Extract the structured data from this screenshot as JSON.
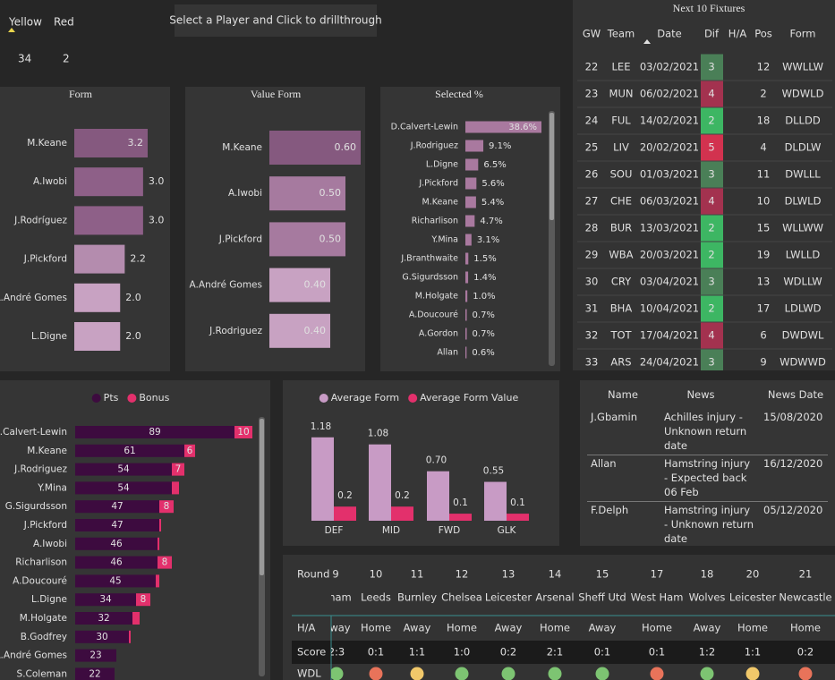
{
  "cards": [
    {
      "label": "Yellow",
      "value": 34,
      "color": "#e8d44d"
    },
    {
      "label": "Red",
      "value": 2,
      "color": "#b92a52"
    }
  ],
  "tooltip": "Select a Player and Click to drillthrough",
  "chart_data": [
    {
      "type": "hbar",
      "title": "Form",
      "categories": [
        "M.Keane",
        "A.Iwobi",
        "J.Rodríguez",
        "J.Pickford",
        "A.André Gomes",
        "L.Digne"
      ],
      "values": [
        3.2,
        3,
        3,
        2.2,
        2,
        2
      ],
      "value_labels": [
        "3.2",
        "3.0",
        "3.0",
        "2.2",
        "2.0",
        "2.0"
      ],
      "colors": [
        "#85597f",
        "#8e6088",
        "#8e6088",
        "#b48cae",
        "#c8a2c2",
        "#c8a2c2"
      ]
    },
    {
      "type": "hbar",
      "title": "Value Form",
      "categories": [
        "M.Keane",
        "A.Iwobi",
        "J.Pickford",
        "A.André Gomes",
        "J.Rodriguez"
      ],
      "values": [
        0.6,
        0.5,
        0.5,
        0.4,
        0.4
      ],
      "value_labels": [
        "0.60",
        "0.50",
        "0.50",
        "0.40",
        "0.40"
      ],
      "colors": [
        "#85597f",
        "#a67a9f",
        "#a67a9f",
        "#c8a2c2",
        "#c8a2c2"
      ]
    },
    {
      "type": "hbar",
      "title": "Selected %",
      "categories": [
        "D.Calvert-Lewin",
        "J.Rodriguez",
        "L.Digne",
        "J.Pickford",
        "M.Keane",
        "Richarlison",
        "Y.Mina",
        "J.Branthwaite",
        "G.Sigurdsson",
        "M.Holgate",
        "A.Doucouré",
        "A.Gordon",
        "Allan"
      ],
      "values": [
        38.6,
        9.1,
        6.5,
        5.6,
        5.4,
        4.7,
        3.1,
        1.5,
        1.4,
        1.0,
        0.7,
        0.7,
        0.6
      ],
      "value_labels": [
        "38.6%",
        "9.1%",
        "6.5%",
        "5.6%",
        "5.4%",
        "4.7%",
        "3.1%",
        "1.5%",
        "1.4%",
        "1.0%",
        "0.7%",
        "0.7%",
        "0.6%"
      ],
      "color": "#a9799f"
    },
    {
      "type": "hstack",
      "legend": "top",
      "categories": [
        "D.Calvert-Lewin",
        "M.Keane",
        "J.Rodriguez",
        "Y.Mina",
        "G.Sigurdsson",
        "J.Pickford",
        "A.Iwobi",
        "Richarlison",
        "A.Doucouré",
        "L.Digne",
        "M.Holgate",
        "B.Godfrey",
        "A.André Gomes",
        "S.Coleman"
      ],
      "series": [
        {
          "name": "Pts",
          "color": "#3d0b3f",
          "values": [
            89,
            61,
            54,
            54,
            47,
            47,
            46,
            46,
            45,
            34,
            32,
            30,
            23,
            22
          ]
        },
        {
          "name": "Bonus",
          "color": "#e3306c",
          "values": [
            10,
            6,
            7,
            4,
            8,
            1,
            1,
            8,
            2,
            8,
            4,
            1,
            null,
            null
          ]
        }
      ]
    },
    {
      "type": "column",
      "legend": "top",
      "categories": [
        "DEF",
        "MID",
        "FWD",
        "GLK"
      ],
      "series": [
        {
          "name": "Average Form",
          "color": "#c89bc5",
          "values": [
            1.18,
            1.08,
            0.7,
            0.55
          ],
          "value_labels": [
            "1.18",
            "1.08",
            "0.70",
            "0.55"
          ]
        },
        {
          "name": "Average Form Value",
          "color": "#e3306c",
          "values": [
            0.2,
            0.2,
            0.1,
            0.1
          ]
        }
      ]
    }
  ],
  "fixtures": {
    "title": "Next 10 Fixtures",
    "columns": [
      "GW",
      "Team",
      "Date",
      "Dif",
      "H/A",
      "Pos",
      "Form"
    ],
    "dif_colors": {
      "2": "#3db663",
      "3": "#4a7f57",
      "4": "#a3324f",
      "5": "#d2324f"
    },
    "rows": [
      {
        "gw": 22,
        "team": "LEE",
        "date": "03/02/2021",
        "dif": 3,
        "pos": 12,
        "form": "WWLLW"
      },
      {
        "gw": 23,
        "team": "MUN",
        "date": "06/02/2021",
        "dif": 4,
        "pos": 2,
        "form": "WDWLD"
      },
      {
        "gw": 24,
        "team": "FUL",
        "date": "14/02/2021",
        "dif": 2,
        "pos": 18,
        "form": "DLLDD"
      },
      {
        "gw": 25,
        "team": "LIV",
        "date": "20/02/2021",
        "dif": 5,
        "pos": 4,
        "form": "DLDLW"
      },
      {
        "gw": 26,
        "team": "SOU",
        "date": "01/03/2021",
        "dif": 3,
        "pos": 11,
        "form": "DWLLL"
      },
      {
        "gw": 27,
        "team": "CHE",
        "date": "06/03/2021",
        "dif": 4,
        "pos": 10,
        "form": "DLWLD"
      },
      {
        "gw": 28,
        "team": "BUR",
        "date": "13/03/2021",
        "dif": 2,
        "pos": 15,
        "form": "WLLWW"
      },
      {
        "gw": 29,
        "team": "WBA",
        "date": "20/03/2021",
        "dif": 2,
        "pos": 19,
        "form": "LWLLD"
      },
      {
        "gw": 30,
        "team": "CRY",
        "date": "03/04/2021",
        "dif": 3,
        "pos": 13,
        "form": "WDLLW"
      },
      {
        "gw": 31,
        "team": "BHA",
        "date": "10/04/2021",
        "dif": 2,
        "pos": 17,
        "form": "LDLWD"
      },
      {
        "gw": 32,
        "team": "TOT",
        "date": "17/04/2021",
        "dif": 4,
        "pos": 6,
        "form": "DWDWL"
      },
      {
        "gw": 33,
        "team": "ARS",
        "date": "24/04/2021",
        "dif": 3,
        "pos": 9,
        "form": "WDWWD"
      }
    ]
  },
  "news": {
    "columns": [
      "Name",
      "News",
      "News Date"
    ],
    "rows": [
      [
        "J.Gbamin",
        "Achilles injury - Unknown return date",
        "15/08/2020"
      ],
      [
        "Allan",
        "Hamstring injury - Expected back 06 Feb",
        "16/12/2020"
      ],
      [
        "F.Delph",
        "Hamstring injury - Unknown return date",
        "05/12/2020"
      ]
    ]
  },
  "results": {
    "row_labels": {
      "round": "Round",
      "ha": "H/A",
      "score": "Score",
      "wdl": "WDL"
    },
    "rounds": [
      9,
      10,
      11,
      12,
      13,
      14,
      15,
      17,
      18,
      20,
      21
    ],
    "teams": [
      "ham",
      "Leeds",
      "Burnley",
      "Chelsea",
      "Leicester",
      "Arsenal",
      "Sheff Utd",
      "West Ham",
      "Wolves",
      "Leicester",
      "Newcastle"
    ],
    "ha": [
      "way",
      "Home",
      "Away",
      "Home",
      "Away",
      "Home",
      "Away",
      "Home",
      "Away",
      "Home",
      "Home"
    ],
    "scores": [
      "2:3",
      "0:1",
      "1:1",
      "1:0",
      "0:2",
      "2:1",
      "0:1",
      "0:1",
      "1:2",
      "1:1",
      "0:2"
    ],
    "wdl_colors": [
      "#7dc472",
      "#e8735a",
      "#f1c86a",
      "#7dc472",
      "#7dc472",
      "#7dc472",
      "#7dc472",
      "#e8735a",
      "#7dc472",
      "#f1c86a",
      "#e8735a"
    ]
  }
}
